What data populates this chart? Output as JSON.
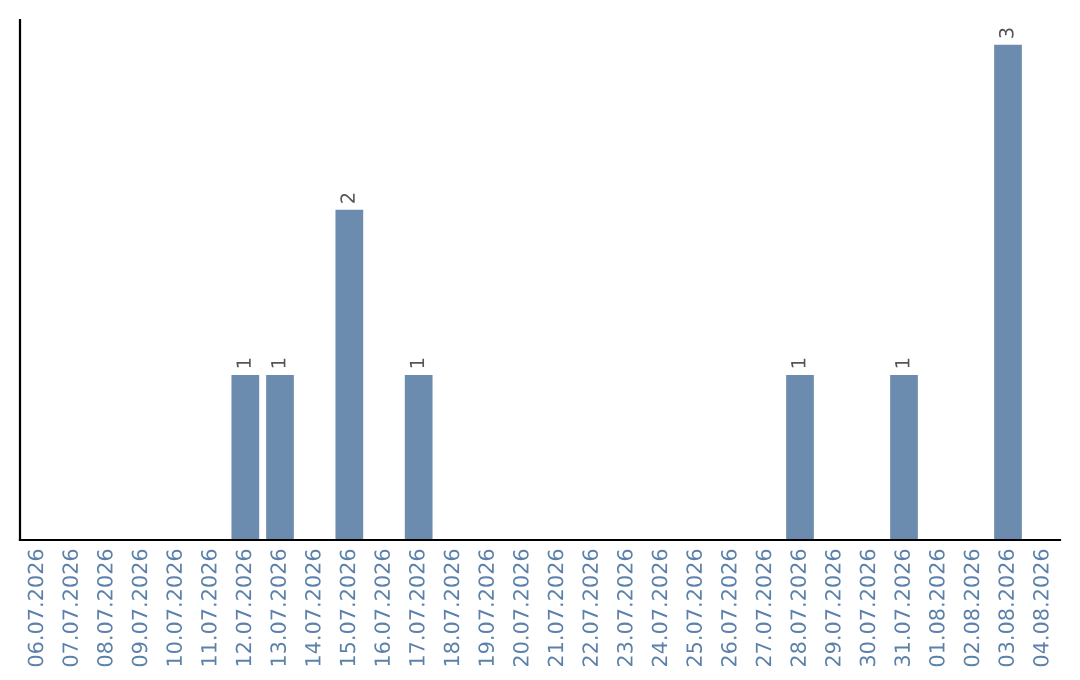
{
  "chart_data": {
    "type": "bar",
    "categories": [
      "06.07.2026",
      "07.07.2026",
      "08.07.2026",
      "09.07.2026",
      "10.07.2026",
      "11.07.2026",
      "12.07.2026",
      "13.07.2026",
      "14.07.2026",
      "15.07.2026",
      "16.07.2026",
      "17.07.2026",
      "18.07.2026",
      "19.07.2026",
      "20.07.2026",
      "21.07.2026",
      "22.07.2026",
      "23.07.2026",
      "24.07.2026",
      "25.07.2026",
      "26.07.2026",
      "27.07.2026",
      "28.07.2026",
      "29.07.2026",
      "30.07.2026",
      "31.07.2026",
      "01.08.2026",
      "02.08.2026",
      "03.08.2026",
      "04.08.2026"
    ],
    "values": [
      0,
      0,
      0,
      0,
      0,
      0,
      1,
      1,
      0,
      2,
      0,
      1,
      0,
      0,
      0,
      0,
      0,
      0,
      0,
      0,
      0,
      0,
      1,
      0,
      0,
      1,
      0,
      0,
      3,
      0
    ],
    "value_labels": [
      null,
      null,
      null,
      null,
      null,
      null,
      "1",
      "1",
      null,
      "2",
      null,
      "1",
      null,
      null,
      null,
      null,
      null,
      null,
      null,
      null,
      null,
      null,
      "1",
      null,
      null,
      "1",
      null,
      null,
      "3",
      null
    ],
    "color": "#6c8caf",
    "tick_labels": "x",
    "grid": false,
    "legend": false
  }
}
